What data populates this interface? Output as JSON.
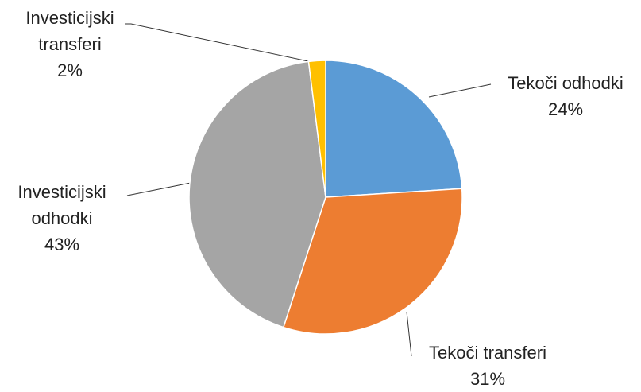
{
  "chart_data": {
    "type": "pie",
    "categories": [
      "Tekoči odhodki",
      "Tekoči transferi",
      "Investicijski odhodki",
      "Investicijski transferi"
    ],
    "values": [
      24,
      31,
      43,
      2
    ],
    "value_labels": [
      "24%",
      "31%",
      "43%",
      "2%"
    ],
    "colors": [
      "#5b9bd5",
      "#ed7d31",
      "#a5a5a5",
      "#ffc000"
    ]
  }
}
